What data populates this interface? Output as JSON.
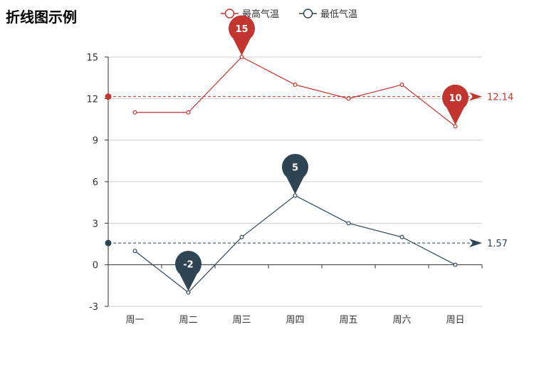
{
  "chart_data": {
    "type": "line",
    "title": "折线图示例",
    "categories": [
      "周一",
      "周二",
      "周三",
      "周四",
      "周五",
      "周六",
      "周日"
    ],
    "ylim": [
      -3,
      15
    ],
    "yticks": [
      -3,
      0,
      3,
      6,
      9,
      12,
      15
    ],
    "grid": true,
    "legend_position": "top-center",
    "series": [
      {
        "name": "最高气温",
        "color": "#c23531",
        "values": [
          11,
          11,
          15,
          13,
          12,
          13,
          10
        ],
        "mark_points": [
          {
            "index": 2,
            "label": "15"
          },
          {
            "index": 6,
            "label": "10"
          }
        ],
        "mark_line": {
          "value": 12.14,
          "label": "12.14"
        }
      },
      {
        "name": "最低气温",
        "color": "#2f4554",
        "values": [
          1,
          -2,
          2,
          5,
          3,
          2,
          0
        ],
        "mark_points": [
          {
            "index": 1,
            "label": "-2"
          },
          {
            "index": 3,
            "label": "5"
          }
        ],
        "mark_line": {
          "value": 1.57,
          "label": "1.57"
        }
      }
    ]
  }
}
